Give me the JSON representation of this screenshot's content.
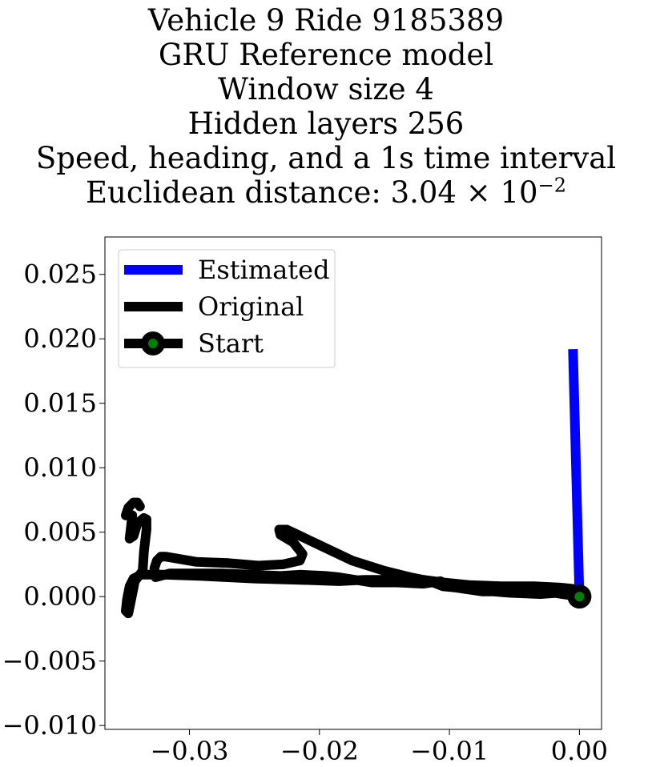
{
  "chart_data": {
    "type": "line",
    "title_lines": [
      "Vehicle 9 Ride 9185389",
      "GRU Reference model",
      "Window size 4",
      "Hidden layers 256",
      "Speed, heading, and a 1s time interval"
    ],
    "title_metric": {
      "prefix": "Euclidean distance: 3.04 × 10",
      "exponent": "−2"
    },
    "xlim": [
      -0.0365,
      0.0017
    ],
    "ylim": [
      -0.0103,
      0.0279
    ],
    "xticks": [
      -0.03,
      -0.02,
      -0.01,
      0.0
    ],
    "xtick_labels": [
      "−0.03",
      "−0.02",
      "−0.01",
      "0.00"
    ],
    "yticks": [
      -0.01,
      -0.005,
      0.0,
      0.005,
      0.01,
      0.015,
      0.02,
      0.025
    ],
    "ytick_labels": [
      "−0.010",
      "−0.005",
      "0.000",
      "0.005",
      "0.010",
      "0.015",
      "0.020",
      "0.025"
    ],
    "legend_position": "top-left",
    "series": [
      {
        "name": "Estimated",
        "color": "#0000ff",
        "x": [
          0.0,
          -0.0005
        ],
        "y": [
          0.0,
          0.0192
        ]
      },
      {
        "name": "Original",
        "color": "#000000",
        "x": [
          0.0,
          -0.002,
          -0.004,
          -0.0065,
          -0.008,
          -0.01,
          -0.0107,
          -0.012,
          -0.014,
          -0.016,
          -0.0185,
          -0.0195,
          -0.0215,
          -0.023,
          -0.0275,
          -0.0315,
          -0.0326,
          -0.0327,
          -0.0325,
          -0.0322,
          -0.0318,
          -0.0295,
          -0.027,
          -0.0247,
          -0.0228,
          -0.0215,
          -0.0213,
          -0.022,
          -0.023,
          -0.0231,
          -0.0225,
          -0.02,
          -0.0175,
          -0.015,
          -0.013,
          -0.012,
          -0.0105,
          -0.0085,
          -0.006,
          -0.0035,
          -0.0015,
          -0.0005,
          0.0,
          -0.0015,
          -0.003,
          -0.0055,
          -0.0067,
          -0.0075,
          -0.0095,
          -0.0105,
          -0.0115,
          -0.013,
          -0.0145,
          -0.0165,
          -0.0185,
          -0.0215,
          -0.025,
          -0.029,
          -0.032,
          -0.0337,
          -0.0343,
          -0.0346,
          -0.0348,
          -0.0349,
          -0.0347,
          -0.0345,
          -0.0342,
          -0.0336,
          -0.0335,
          -0.0333,
          -0.0333,
          -0.0335,
          -0.034,
          -0.0343,
          -0.0346,
          -0.0345,
          -0.0344,
          -0.0346,
          -0.0349,
          -0.0347,
          -0.0343,
          -0.034,
          -0.0338
        ],
        "y": [
          0.0,
          0.0003,
          0.0004,
          0.0004,
          0.0006,
          0.0009,
          0.0012,
          0.001,
          0.0011,
          0.0011,
          0.0015,
          0.0016,
          0.0017,
          0.0016,
          0.0018,
          0.0018,
          0.0015,
          0.0022,
          0.0028,
          0.0031,
          0.0031,
          0.0027,
          0.0026,
          0.0024,
          0.0025,
          0.0028,
          0.0033,
          0.0042,
          0.0048,
          0.0052,
          0.0052,
          0.004,
          0.0028,
          0.002,
          0.0015,
          0.0013,
          0.0011,
          0.0009,
          0.0008,
          0.0008,
          0.0007,
          0.0006,
          0.0,
          0.0003,
          0.0002,
          0.0003,
          0.0004,
          0.0004,
          0.0007,
          0.0008,
          0.0012,
          0.0014,
          0.0013,
          0.0013,
          0.0012,
          0.0013,
          0.0014,
          0.0016,
          0.0017,
          0.0017,
          0.0014,
          0.0008,
          -0.0002,
          -0.0011,
          -0.0013,
          -0.0003,
          0.0012,
          0.002,
          0.0035,
          0.0052,
          0.006,
          0.0061,
          0.0057,
          0.0047,
          0.0045,
          0.0054,
          0.0063,
          0.0064,
          0.0063,
          0.0069,
          0.0073,
          0.0073,
          0.007
        ]
      }
    ],
    "start": {
      "name": "Start",
      "x": 0.0,
      "y": 0.0,
      "ring_color": "#000000",
      "dot_color": "#008000"
    },
    "grid": false
  }
}
